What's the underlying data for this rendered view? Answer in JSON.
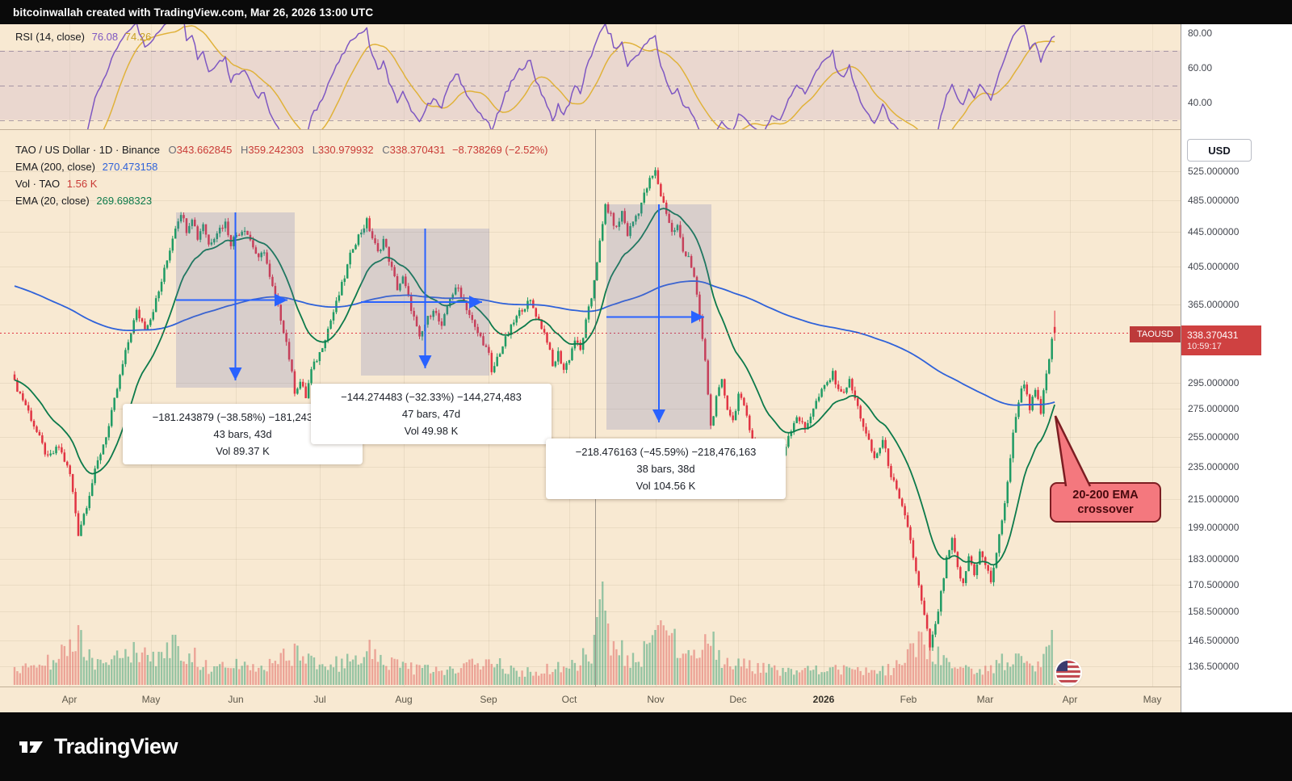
{
  "header": {
    "attribution": "bitcoinwallah created with TradingView.com, Mar 26, 2026 13:00 UTC"
  },
  "rsi_panel": {
    "legend_label": "RSI (14, close)",
    "rsi_value": "76.08",
    "ma_value": "74.26",
    "axis_ticks": [
      "80.00",
      "60.00",
      "40.00"
    ]
  },
  "main_panel": {
    "legend": {
      "symbol_title": "TAO / US Dollar · 1D · Binance",
      "o_label": "O",
      "o_value": "343.662845",
      "h_label": "H",
      "h_value": "359.242303",
      "l_label": "L",
      "l_value": "330.979932",
      "c_label": "C",
      "c_value": "338.370431",
      "change": "−8.738269 (−2.52%)",
      "ema200_label": "EMA (200, close)",
      "ema200_value": "270.473158",
      "vol_label": "Vol · TAO",
      "vol_value": "1.56 K",
      "ema20_label": "EMA (20, close)",
      "ema20_value": "269.698323"
    },
    "price_axis": {
      "currency_button": "USD",
      "ticks": [
        "525.000000",
        "485.000000",
        "445.000000",
        "405.000000",
        "365.000000",
        "295.000000",
        "275.000000",
        "255.000000",
        "235.000000",
        "215.000000",
        "199.000000",
        "183.000000",
        "170.500000",
        "158.500000",
        "146.500000",
        "136.500000"
      ],
      "last_price_badge": {
        "symbol": "TAOUSD",
        "price": "338.370431",
        "countdown": "10:59:17"
      }
    },
    "time_axis": {
      "labels": [
        "Apr",
        "May",
        "Jun",
        "Jul",
        "Aug",
        "Sep",
        "Oct",
        "Nov",
        "Dec",
        "2026",
        "Feb",
        "Mar",
        "Apr",
        "May"
      ]
    },
    "measurements": [
      {
        "range": "−181.243879 (−38.58%) −181,243,879",
        "bars": "43 bars, 43d",
        "volume": "Vol 89.37 K"
      },
      {
        "range": "−144.274483 (−32.33%) −144,274,483",
        "bars": "47 bars, 47d",
        "volume": "Vol 49.98 K"
      },
      {
        "range": "−218.476163 (−45.59%) −218,476,163",
        "bars": "38 bars, 38d",
        "volume": "Vol 104.56 K"
      }
    ],
    "callout": {
      "text": "20-200 EMA crossover"
    }
  },
  "footer": {
    "brand": "TradingView"
  },
  "colors": {
    "background": "#f8e9d2",
    "up": "#1f9b64",
    "down": "#e13443",
    "ema200": "#2f62d9",
    "ema20": "#0c7a4b",
    "rsi": "#7e57c2",
    "rsi_ma": "#e0b23a",
    "arrow": "#2962ff",
    "badge": "#cf4141",
    "callout_fill": "#f4787e",
    "callout_border": "#7c1d22"
  },
  "chart_data": {
    "type": "candlestick",
    "symbol": "TAO / US Dollar",
    "exchange": "Binance",
    "interval": "1D",
    "price_scale": "log",
    "last_bar": {
      "open": 343.662845,
      "high": 359.242303,
      "low": 330.979932,
      "close": 338.370431,
      "change": -8.738269,
      "change_pct": -2.52
    },
    "indicators": {
      "ema200": 270.473158,
      "ema20": 269.698323,
      "rsi14": 76.08,
      "rsi14_ma": 74.26,
      "volume_k": 1.56
    },
    "measurements": [
      {
        "price_change": -181.243879,
        "pct": -38.58,
        "bars": 43,
        "days": 43,
        "volume_k": 89.37
      },
      {
        "price_change": -144.274483,
        "pct": -32.33,
        "bars": 47,
        "days": 47,
        "volume_k": 49.98
      },
      {
        "price_change": -218.476163,
        "pct": -45.59,
        "bars": 38,
        "days": 38,
        "volume_k": 104.56
      }
    ],
    "price_ticks": [
      525,
      485,
      445,
      405,
      365,
      295,
      275,
      255,
      235,
      215,
      199,
      183,
      170.5,
      158.5,
      146.5,
      136.5
    ],
    "rsi_ticks": [
      80,
      60,
      40
    ],
    "rsi_bands": [
      70,
      50,
      30
    ],
    "time_positions": [
      86,
      187,
      292,
      396,
      500,
      605,
      705,
      812,
      914,
      1020,
      1125,
      1220,
      1325,
      1427
    ],
    "bars_total": 376,
    "ema200_seed": 385,
    "close_anchors": [
      [
        0,
        295
      ],
      [
        4,
        278
      ],
      [
        8,
        258
      ],
      [
        12,
        240
      ],
      [
        16,
        248
      ],
      [
        20,
        230
      ],
      [
        23,
        196
      ],
      [
        26,
        212
      ],
      [
        30,
        238
      ],
      [
        34,
        262
      ],
      [
        38,
        300
      ],
      [
        41,
        330
      ],
      [
        44,
        358
      ],
      [
        47,
        344
      ],
      [
        49,
        352
      ],
      [
        52,
        378
      ],
      [
        55,
        412
      ],
      [
        58,
        452
      ],
      [
        60,
        470
      ],
      [
        62,
        448
      ],
      [
        64,
        464
      ],
      [
        66,
        438
      ],
      [
        68,
        456
      ],
      [
        70,
        430
      ],
      [
        73,
        446
      ],
      [
        76,
        456
      ],
      [
        78,
        432
      ],
      [
        80,
        442
      ],
      [
        83,
        450
      ],
      [
        86,
        428
      ],
      [
        88,
        412
      ],
      [
        90,
        424
      ],
      [
        92,
        392
      ],
      [
        94,
        372
      ],
      [
        96,
        352
      ],
      [
        98,
        330
      ],
      [
        100,
        302
      ],
      [
        101,
        289
      ],
      [
        103,
        296
      ],
      [
        105,
        284
      ],
      [
        107,
        305
      ],
      [
        110,
        320
      ],
      [
        113,
        342
      ],
      [
        116,
        366
      ],
      [
        119,
        394
      ],
      [
        122,
        428
      ],
      [
        125,
        446
      ],
      [
        127,
        458
      ],
      [
        129,
        438
      ],
      [
        131,
        420
      ],
      [
        133,
        436
      ],
      [
        136,
        402
      ],
      [
        138,
        382
      ],
      [
        140,
        392
      ],
      [
        143,
        362
      ],
      [
        146,
        332
      ],
      [
        148,
        346
      ],
      [
        151,
        362
      ],
      [
        154,
        342
      ],
      [
        157,
        374
      ],
      [
        160,
        382
      ],
      [
        163,
        362
      ],
      [
        166,
        342
      ],
      [
        169,
        330
      ],
      [
        171,
        318
      ],
      [
        172,
        302
      ],
      [
        174,
        316
      ],
      [
        177,
        332
      ],
      [
        180,
        348
      ],
      [
        183,
        362
      ],
      [
        186,
        368
      ],
      [
        189,
        350
      ],
      [
        192,
        332
      ],
      [
        194,
        308
      ],
      [
        196,
        320
      ],
      [
        198,
        306
      ],
      [
        200,
        316
      ],
      [
        202,
        332
      ],
      [
        204,
        322
      ],
      [
        206,
        348
      ],
      [
        208,
        372
      ],
      [
        210,
        412
      ],
      [
        212,
        452
      ],
      [
        213,
        479
      ],
      [
        215,
        464
      ],
      [
        217,
        448
      ],
      [
        219,
        470
      ],
      [
        221,
        442
      ],
      [
        223,
        458
      ],
      [
        225,
        472
      ],
      [
        227,
        492
      ],
      [
        229,
        512
      ],
      [
        231,
        524
      ],
      [
        233,
        492
      ],
      [
        235,
        470
      ],
      [
        237,
        444
      ],
      [
        239,
        452
      ],
      [
        241,
        422
      ],
      [
        243,
        418
      ],
      [
        245,
        392
      ],
      [
        247,
        352
      ],
      [
        249,
        312
      ],
      [
        251,
        262
      ],
      [
        253,
        282
      ],
      [
        255,
        296
      ],
      [
        257,
        276
      ],
      [
        259,
        266
      ],
      [
        261,
        286
      ],
      [
        264,
        270
      ],
      [
        267,
        246
      ],
      [
        270,
        230
      ],
      [
        273,
        246
      ],
      [
        276,
        236
      ],
      [
        279,
        256
      ],
      [
        282,
        270
      ],
      [
        285,
        260
      ],
      [
        288,
        276
      ],
      [
        292,
        292
      ],
      [
        295,
        302
      ],
      [
        298,
        286
      ],
      [
        301,
        296
      ],
      [
        304,
        276
      ],
      [
        307,
        256
      ],
      [
        310,
        240
      ],
      [
        313,
        252
      ],
      [
        316,
        230
      ],
      [
        319,
        214
      ],
      [
        322,
        200
      ],
      [
        325,
        176
      ],
      [
        328,
        156
      ],
      [
        330,
        144
      ],
      [
        332,
        152
      ],
      [
        334,
        166
      ],
      [
        336,
        182
      ],
      [
        338,
        192
      ],
      [
        340,
        178
      ],
      [
        342,
        170
      ],
      [
        344,
        184
      ],
      [
        346,
        176
      ],
      [
        348,
        186
      ],
      [
        350,
        180
      ],
      [
        352,
        172
      ],
      [
        354,
        186
      ],
      [
        356,
        202
      ],
      [
        358,
        226
      ],
      [
        360,
        256
      ],
      [
        362,
        282
      ],
      [
        364,
        296
      ],
      [
        366,
        276
      ],
      [
        368,
        288
      ],
      [
        370,
        272
      ],
      [
        372,
        302
      ],
      [
        374,
        330
      ],
      [
        375,
        338.37
      ]
    ],
    "volume_anchors": [
      [
        0,
        18
      ],
      [
        10,
        22
      ],
      [
        23,
        55
      ],
      [
        30,
        25
      ],
      [
        40,
        42
      ],
      [
        50,
        30
      ],
      [
        58,
        48
      ],
      [
        62,
        40
      ],
      [
        70,
        22
      ],
      [
        80,
        25
      ],
      [
        90,
        20
      ],
      [
        100,
        38
      ],
      [
        110,
        24
      ],
      [
        120,
        28
      ],
      [
        127,
        42
      ],
      [
        140,
        22
      ],
      [
        150,
        18
      ],
      [
        160,
        20
      ],
      [
        171,
        32
      ],
      [
        180,
        16
      ],
      [
        190,
        18
      ],
      [
        200,
        22
      ],
      [
        208,
        40
      ],
      [
        212,
        128
      ],
      [
        213,
        92
      ],
      [
        215,
        60
      ],
      [
        220,
        35
      ],
      [
        225,
        30
      ],
      [
        231,
        68
      ],
      [
        233,
        80
      ],
      [
        237,
        55
      ],
      [
        243,
        40
      ],
      [
        251,
        58
      ],
      [
        255,
        30
      ],
      [
        261,
        25
      ],
      [
        270,
        20
      ],
      [
        280,
        16
      ],
      [
        292,
        22
      ],
      [
        300,
        18
      ],
      [
        310,
        15
      ],
      [
        316,
        20
      ],
      [
        322,
        35
      ],
      [
        326,
        48
      ],
      [
        330,
        52
      ],
      [
        334,
        30
      ],
      [
        340,
        22
      ],
      [
        350,
        18
      ],
      [
        356,
        28
      ],
      [
        360,
        35
      ],
      [
        364,
        30
      ],
      [
        368,
        25
      ],
      [
        372,
        45
      ],
      [
        374,
        68
      ],
      [
        375,
        2
      ]
    ]
  }
}
